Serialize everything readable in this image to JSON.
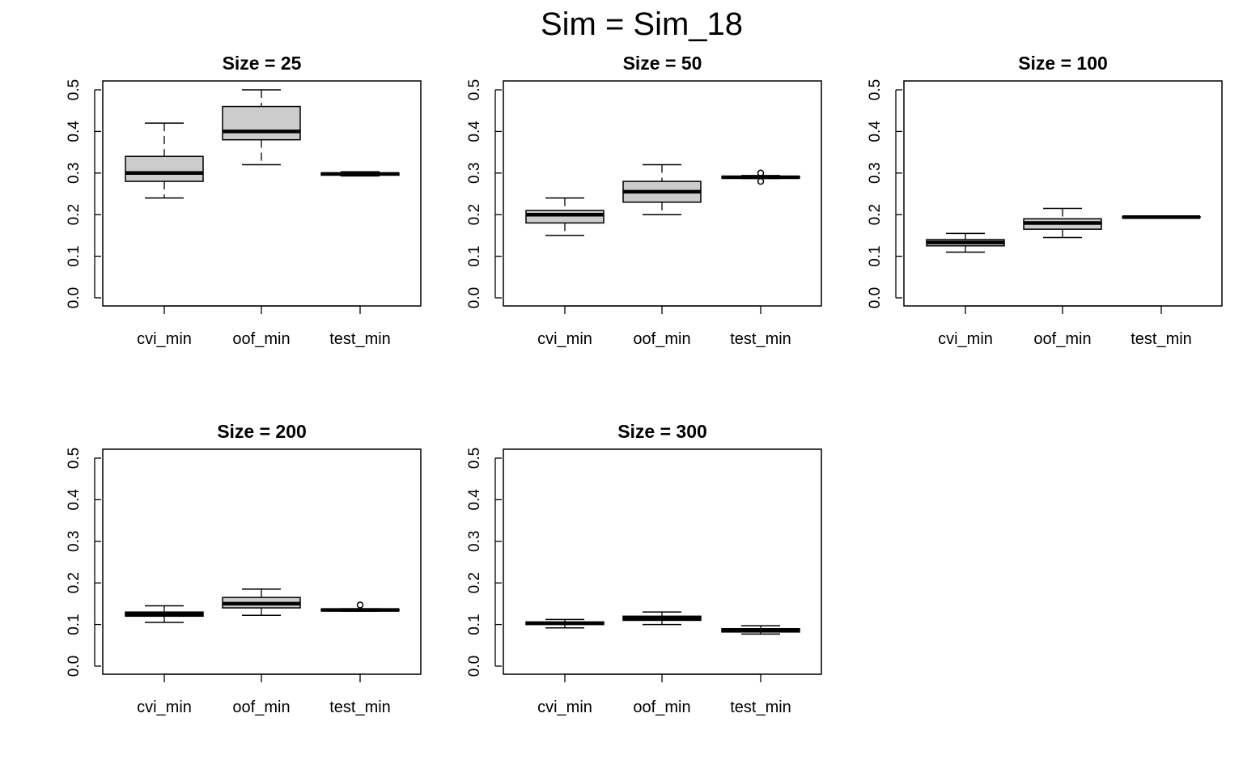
{
  "title": "Sim = Sim_18",
  "colors": {
    "box_fill": "#cccccc",
    "stroke": "#000000",
    "background": "#ffffff"
  },
  "chart_data": [
    {
      "type": "box",
      "title": "Size = 25",
      "categories": [
        "cvi_min",
        "oof_min",
        "test_min"
      ],
      "ylim": [
        0,
        0.5
      ],
      "yticks": [
        "0.0",
        "0.1",
        "0.2",
        "0.3",
        "0.4",
        "0.5"
      ],
      "boxes": [
        {
          "min": 0.24,
          "q1": 0.28,
          "median": 0.3,
          "q3": 0.34,
          "max": 0.42,
          "outliers": []
        },
        {
          "min": 0.32,
          "q1": 0.38,
          "median": 0.4,
          "q3": 0.46,
          "max": 0.5,
          "outliers": []
        },
        {
          "min": 0.293,
          "q1": 0.295,
          "median": 0.298,
          "q3": 0.3,
          "max": 0.303,
          "outliers": []
        }
      ]
    },
    {
      "type": "box",
      "title": "Size = 50",
      "categories": [
        "cvi_min",
        "oof_min",
        "test_min"
      ],
      "ylim": [
        0,
        0.5
      ],
      "yticks": [
        "0.0",
        "0.1",
        "0.2",
        "0.3",
        "0.4",
        "0.5"
      ],
      "boxes": [
        {
          "min": 0.15,
          "q1": 0.18,
          "median": 0.2,
          "q3": 0.21,
          "max": 0.24,
          "outliers": []
        },
        {
          "min": 0.2,
          "q1": 0.23,
          "median": 0.255,
          "q3": 0.28,
          "max": 0.32,
          "outliers": []
        },
        {
          "min": 0.287,
          "q1": 0.288,
          "median": 0.29,
          "q3": 0.292,
          "max": 0.294,
          "outliers": [
            0.28,
            0.3
          ]
        }
      ]
    },
    {
      "type": "box",
      "title": "Size = 100",
      "categories": [
        "cvi_min",
        "oof_min",
        "test_min"
      ],
      "ylim": [
        0,
        0.5
      ],
      "yticks": [
        "0.0",
        "0.1",
        "0.2",
        "0.3",
        "0.4",
        "0.5"
      ],
      "boxes": [
        {
          "min": 0.11,
          "q1": 0.125,
          "median": 0.133,
          "q3": 0.14,
          "max": 0.155,
          "outliers": []
        },
        {
          "min": 0.145,
          "q1": 0.165,
          "median": 0.18,
          "q3": 0.19,
          "max": 0.215,
          "outliers": []
        },
        {
          "min": 0.192,
          "q1": 0.193,
          "median": 0.194,
          "q3": 0.195,
          "max": 0.196,
          "outliers": []
        }
      ]
    },
    {
      "type": "box",
      "title": "Size = 200",
      "categories": [
        "cvi_min",
        "oof_min",
        "test_min"
      ],
      "ylim": [
        0,
        0.5
      ],
      "yticks": [
        "0.0",
        "0.1",
        "0.2",
        "0.3",
        "0.4",
        "0.5"
      ],
      "boxes": [
        {
          "min": 0.105,
          "q1": 0.12,
          "median": 0.125,
          "q3": 0.13,
          "max": 0.145,
          "outliers": []
        },
        {
          "min": 0.122,
          "q1": 0.14,
          "median": 0.15,
          "q3": 0.165,
          "max": 0.185,
          "outliers": []
        },
        {
          "min": 0.132,
          "q1": 0.133,
          "median": 0.135,
          "q3": 0.137,
          "max": 0.138,
          "outliers": [
            0.147
          ]
        }
      ]
    },
    {
      "type": "box",
      "title": "Size = 300",
      "categories": [
        "cvi_min",
        "oof_min",
        "test_min"
      ],
      "ylim": [
        0,
        0.5
      ],
      "yticks": [
        "0.0",
        "0.1",
        "0.2",
        "0.3",
        "0.4",
        "0.5"
      ],
      "boxes": [
        {
          "min": 0.092,
          "q1": 0.1,
          "median": 0.103,
          "q3": 0.106,
          "max": 0.112,
          "outliers": []
        },
        {
          "min": 0.1,
          "q1": 0.11,
          "median": 0.115,
          "q3": 0.12,
          "max": 0.13,
          "outliers": []
        },
        {
          "min": 0.077,
          "q1": 0.082,
          "median": 0.086,
          "q3": 0.09,
          "max": 0.097,
          "outliers": []
        }
      ]
    }
  ]
}
